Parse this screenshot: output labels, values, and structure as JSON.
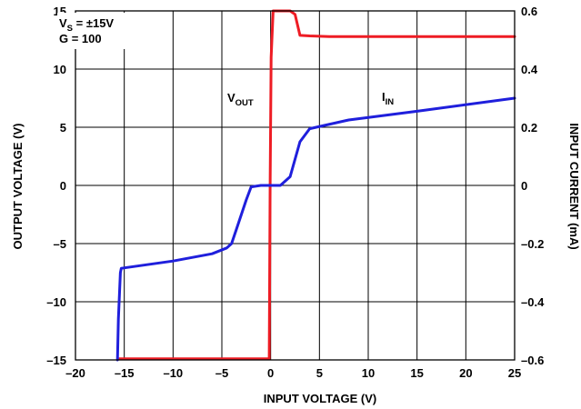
{
  "chart_data": {
    "type": "line",
    "xlabel": "INPUT VOLTAGE (V)",
    "ylabel": "OUTPUT VOLTAGE (V)",
    "y2label": "INPUT CURRENT (mA)",
    "xlim": [
      -20,
      25
    ],
    "ylim": [
      -15,
      15
    ],
    "y2lim": [
      -0.6,
      0.6
    ],
    "xticks": [
      "–20",
      "–15",
      "–10",
      "–5",
      "0",
      "5",
      "10",
      "15",
      "20",
      "25"
    ],
    "yticks": [
      "15",
      "10",
      "5",
      "0",
      "–5",
      "–10",
      "–15"
    ],
    "y2ticks": [
      "0.6",
      "0.4",
      "0.2",
      "0",
      "–0.2",
      "–0.4",
      "–0.6"
    ],
    "grid": true,
    "colors": {
      "vout": "#ee1c24",
      "iin": "#1f1fdc"
    },
    "conditions": {
      "line1_main": "V",
      "line1_sub": "S",
      "line1_rest": " = ±15V",
      "line2": "G = 100"
    },
    "series": [
      {
        "name_main": "V",
        "name_sub": "OUT",
        "axis": "left",
        "x": [
          -15.5,
          -0.15,
          -0.05,
          0.05,
          0.25,
          2.0,
          2.5,
          3.0,
          4.0,
          6.0,
          10.0,
          15.0,
          20.0,
          25.0
        ],
        "y": [
          -14.9,
          -14.9,
          0.0,
          11.0,
          15.0,
          15.0,
          14.7,
          12.9,
          12.85,
          12.8,
          12.8,
          12.8,
          12.8,
          12.8
        ]
      },
      {
        "name_main": "I",
        "name_sub": "IN",
        "axis": "right",
        "x": [
          -15.7,
          -15.6,
          -15.4,
          -15.3,
          -10.0,
          -6.0,
          -4.5,
          -4.0,
          -3.5,
          -2.5,
          -2.0,
          -1.0,
          0.0,
          1.0,
          2.0,
          3.0,
          4.0,
          8.0,
          15.0,
          25.0
        ],
        "y": [
          -0.6,
          -0.46,
          -0.3,
          -0.285,
          -0.26,
          -0.235,
          -0.215,
          -0.2,
          -0.15,
          -0.05,
          -0.005,
          0.0,
          0.0,
          0.0,
          0.03,
          0.15,
          0.195,
          0.225,
          0.255,
          0.3
        ]
      }
    ]
  }
}
